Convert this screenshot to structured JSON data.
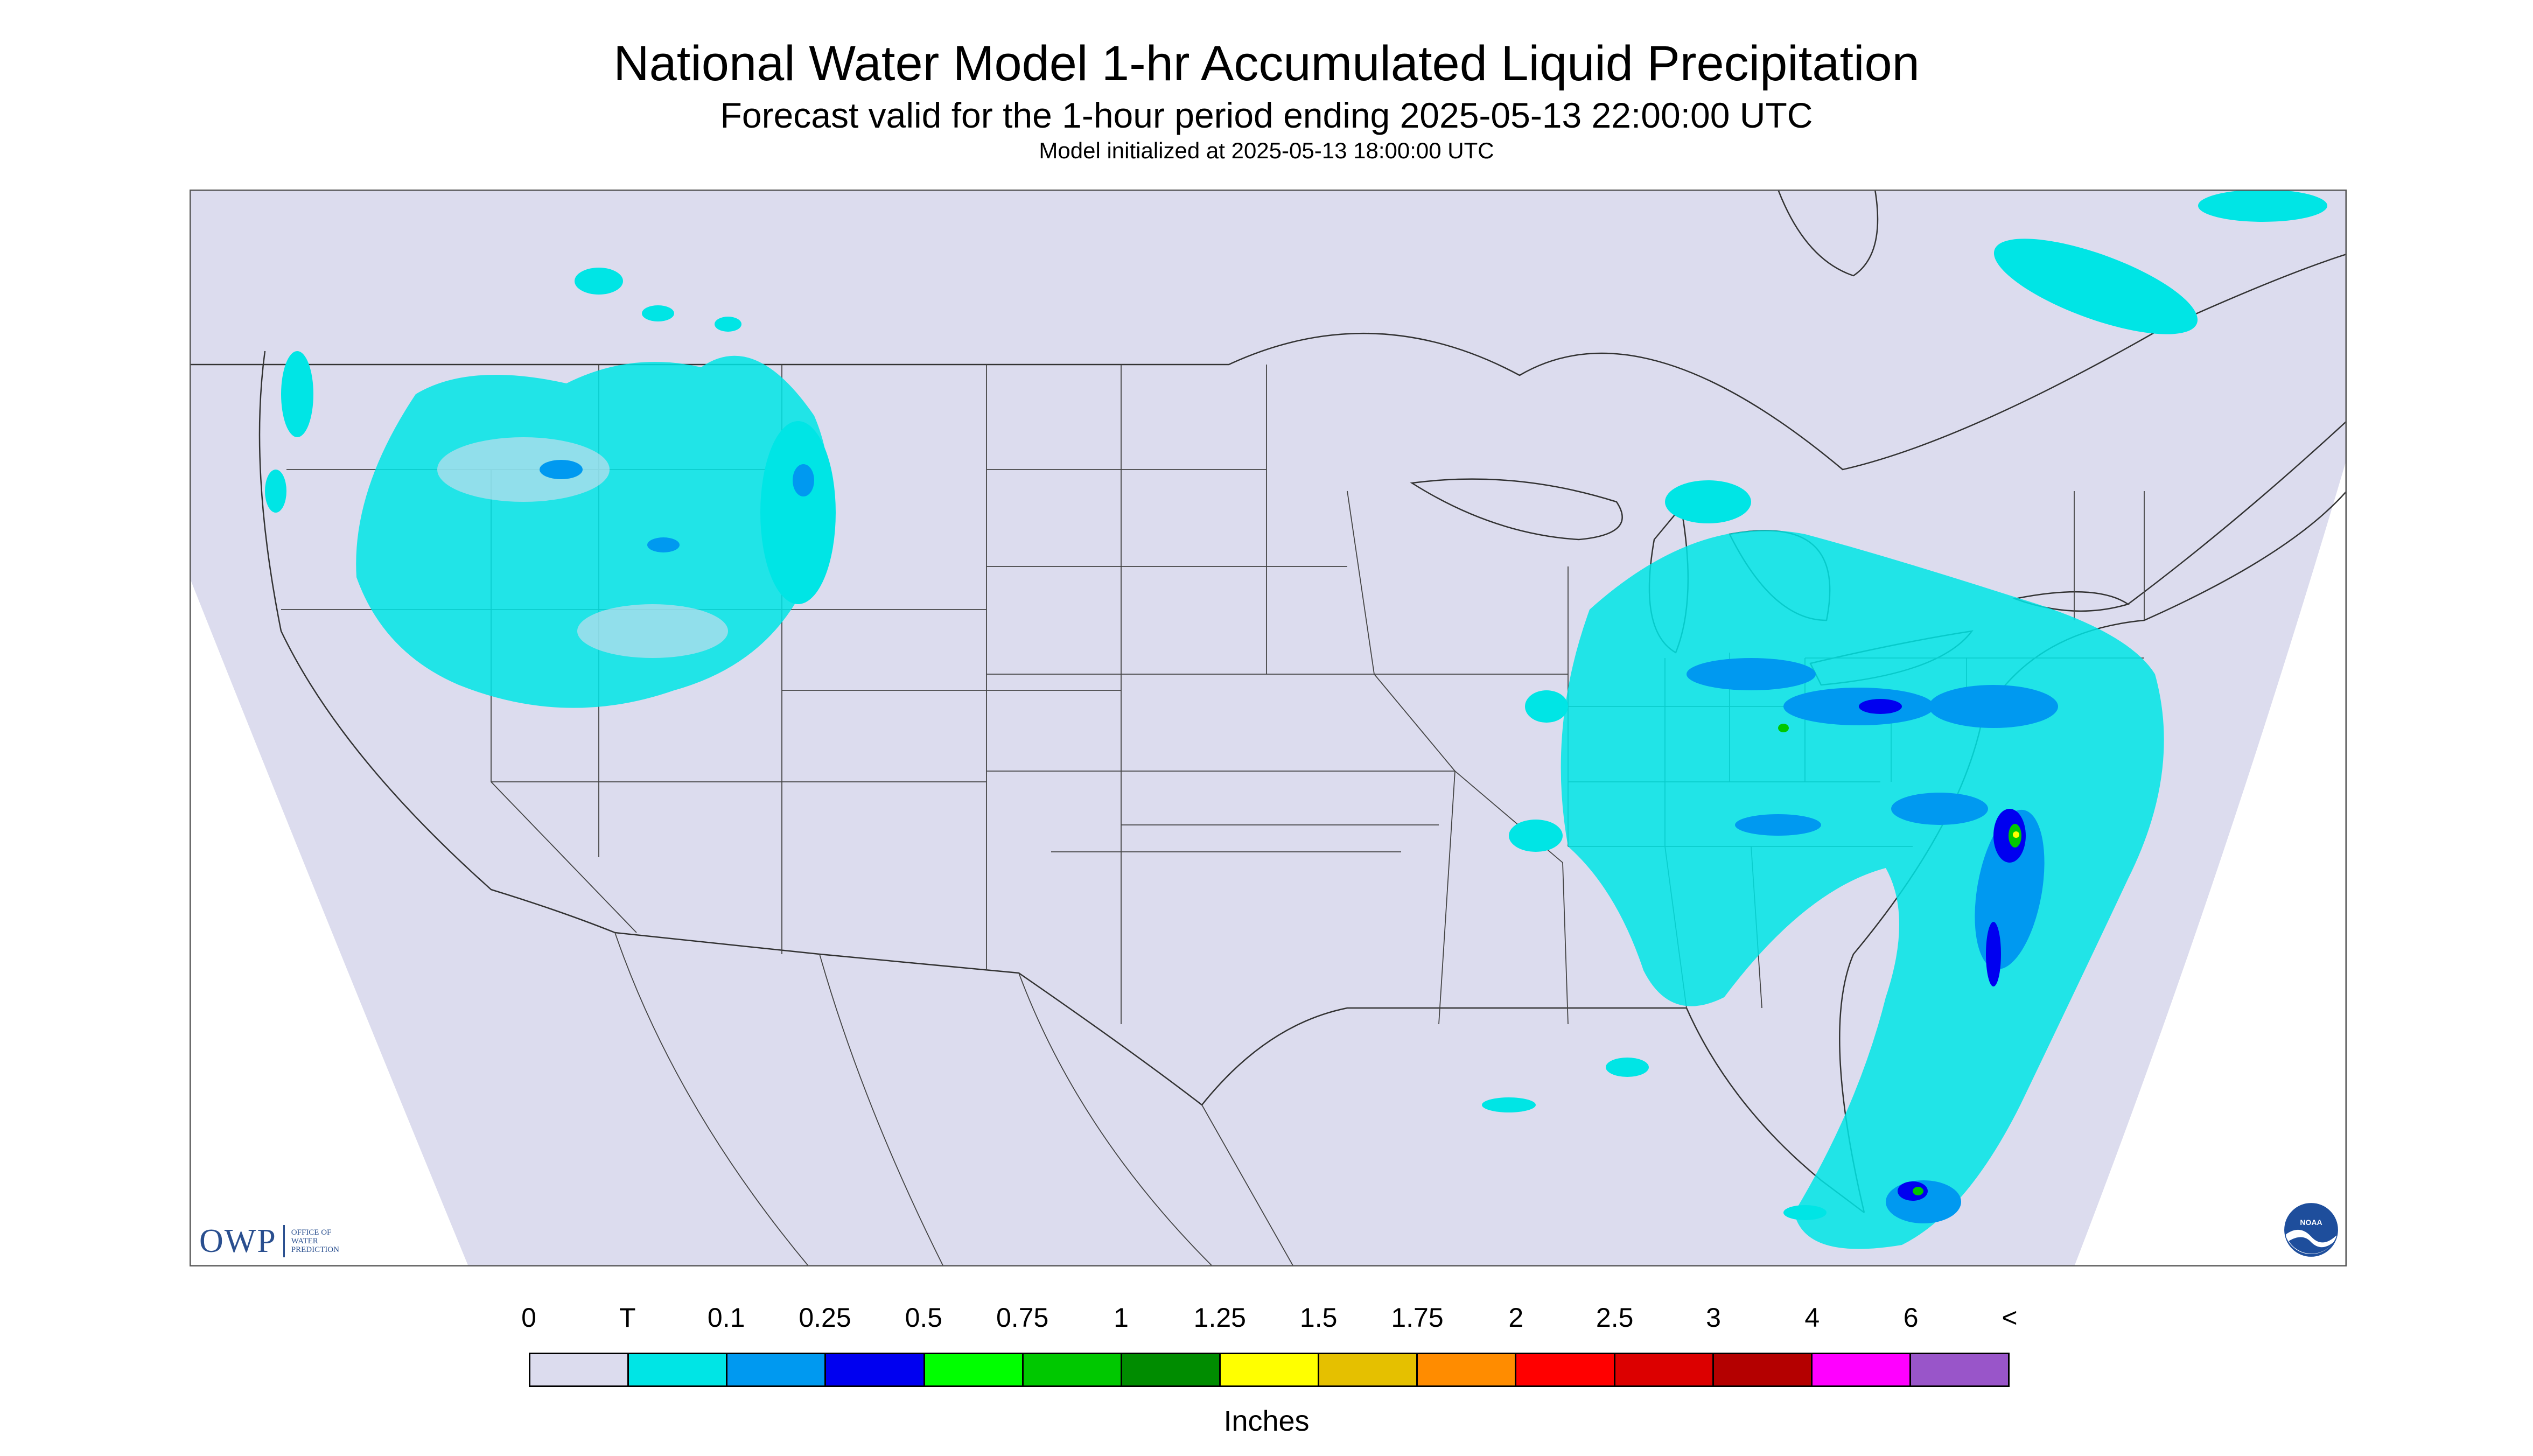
{
  "header": {
    "title": "National Water Model 1-hr Accumulated Liquid Precipitation",
    "subtitle": "Forecast valid for the 1-hour period ending 2025-05-13 22:00:00 UTC",
    "init": "Model initialized at 2025-05-13 18:00:00 UTC"
  },
  "logos": {
    "owp_abbrev": "OWP",
    "owp_line1": "OFFICE OF",
    "owp_line2": "WATER",
    "owp_line3": "PREDICTION",
    "noaa": "NOAA"
  },
  "legend": {
    "units": "Inches",
    "ticks": [
      "0",
      "T",
      "0.1",
      "0.25",
      "0.5",
      "0.75",
      "1",
      "1.25",
      "1.5",
      "1.75",
      "2",
      "2.5",
      "3",
      "4",
      "6",
      "<"
    ],
    "colors": [
      "#dcdcee",
      "#00e5e5",
      "#0099f0",
      "#0000f0",
      "#00ff00",
      "#00c800",
      "#008c00",
      "#ffff00",
      "#e5c000",
      "#ff8c00",
      "#ff0000",
      "#dc0000",
      "#b40000",
      "#ff00ff",
      "#9955c9"
    ]
  },
  "map": {
    "colors": {
      "background": "#ffffff",
      "domain_fill": "#dcdcee",
      "trace": "#00e5e5",
      "light": "#0099f0",
      "moderate": "#0000f0",
      "heavy": "#00c800",
      "border_line": "#333333"
    }
  }
}
